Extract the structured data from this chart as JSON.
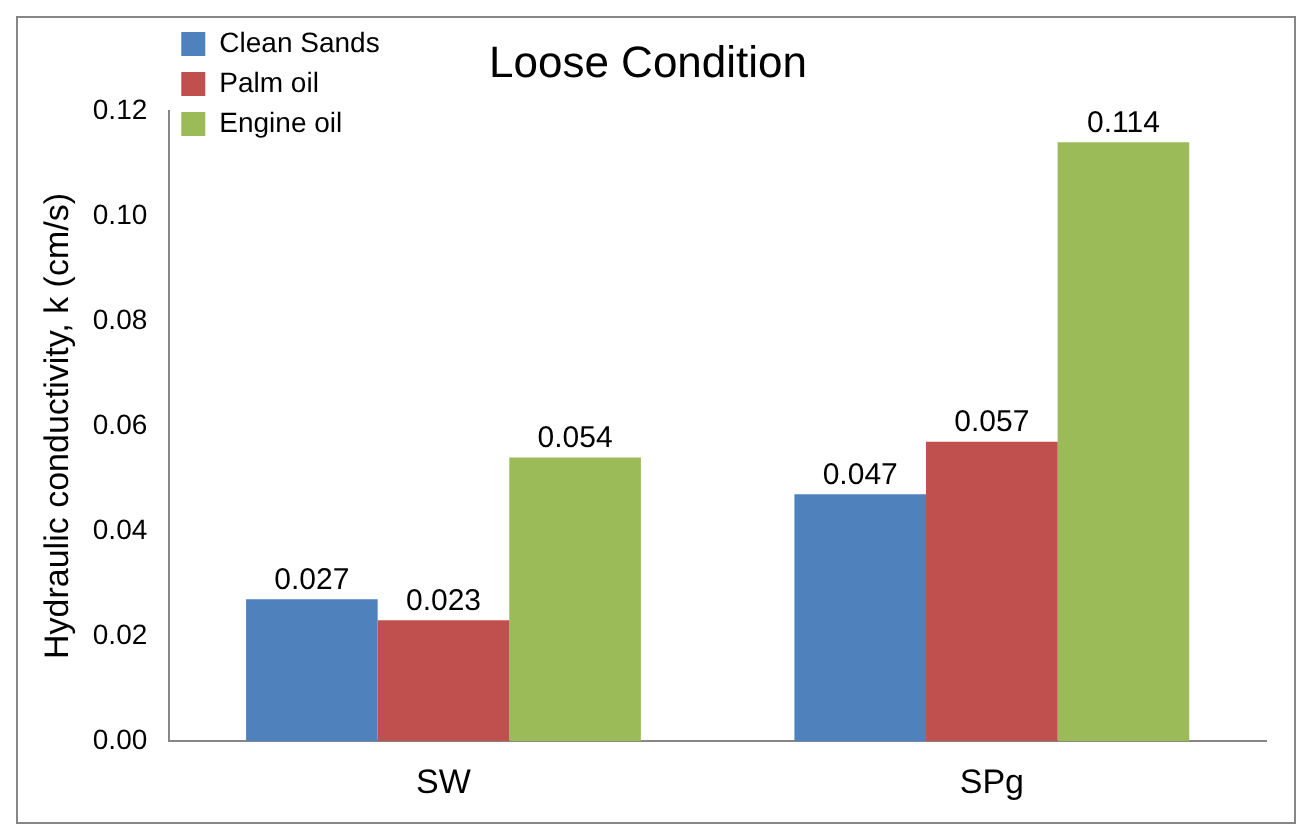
{
  "chart_data": {
    "type": "bar",
    "title": "Loose Condition",
    "ylabel": "Hydraulic conductivity, k (cm/s)",
    "categories": [
      "SW",
      "SPg"
    ],
    "series": [
      {
        "name": "Clean Sands",
        "color": "#4f81bd",
        "values": [
          0.027,
          0.047
        ]
      },
      {
        "name": "Palm oil",
        "color": "#c0504d",
        "values": [
          0.023,
          0.057
        ]
      },
      {
        "name": "Engine oil",
        "color": "#9bbb59",
        "values": [
          0.054,
          0.114
        ]
      }
    ],
    "ylim": [
      0,
      0.12
    ],
    "yticks": [
      {
        "value": 0,
        "label": "0.00"
      },
      {
        "value": 0.02,
        "label": "0.02"
      },
      {
        "value": 0.04,
        "label": "0.04"
      },
      {
        "value": 0.06,
        "label": "0.06"
      },
      {
        "value": 0.08,
        "label": "0.08"
      },
      {
        "value": 0.1,
        "label": "0.10"
      },
      {
        "value": 0.12,
        "label": "0.12"
      }
    ],
    "grid": false,
    "legend": "top left",
    "data_labels": true
  }
}
